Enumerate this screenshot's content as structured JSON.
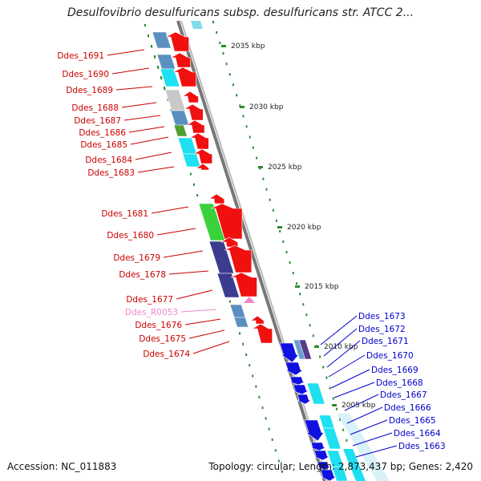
{
  "title": "Desulfovibrio desulfuricans subsp. desulfuricans str. ATCC 2...",
  "footer": {
    "accession": "Accession: NC_011883",
    "summary": "Topology: circular; Length: 2,873,437 bp; Genes: 2,420"
  },
  "colors": {
    "backbone": "#8a8a8a",
    "scale_dots": "#2e8b2e",
    "left_label": "#cc0000",
    "rna_label": "#ee88cc",
    "right_label": "#0000cc"
  },
  "scale_ticks": [
    "2035 kbp",
    "2030 kbp",
    "2025 kbp",
    "2020 kbp",
    "2015 kbp",
    "2010 kbp",
    "2005 kbp"
  ],
  "left_labels": [
    "Ddes_1691",
    "Ddes_1690",
    "Ddes_1689",
    "Ddes_1688",
    "Ddes_1687",
    "Ddes_1686",
    "Ddes_1685",
    "Ddes_1684",
    "Ddes_1683",
    "Ddes_1681",
    "Ddes_1680",
    "Ddes_1679",
    "Ddes_1678",
    "Ddes_1677",
    "Ddes_R0053",
    "Ddes_1676",
    "Ddes_1675",
    "Ddes_1674"
  ],
  "right_labels": [
    "Ddes_1673",
    "Ddes_1672",
    "Ddes_1671",
    "Ddes_1670",
    "Ddes_1669",
    "Ddes_1668",
    "Ddes_1667",
    "Ddes_1666",
    "Ddes_1665",
    "Ddes_1664",
    "Ddes_1663"
  ]
}
